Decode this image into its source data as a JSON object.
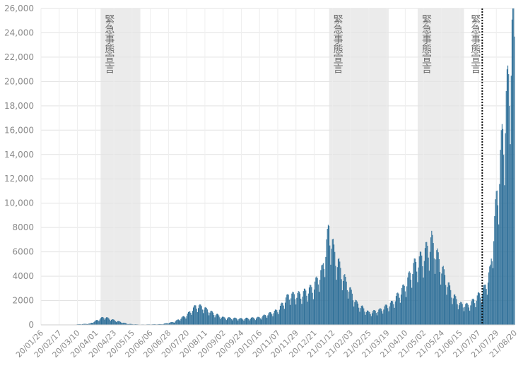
{
  "chart_data": {
    "type": "bar",
    "title": "",
    "xlabel": "",
    "ylabel": "",
    "ylim": [
      0,
      26000
    ],
    "grid": true,
    "bar_color": "#2e6f98",
    "band_color": "#ebebeb",
    "y_ticks": [
      {
        "value": 0,
        "label": "0"
      },
      {
        "value": 2000,
        "label": "2000"
      },
      {
        "value": 4000,
        "label": "4000"
      },
      {
        "value": 6000,
        "label": "6000"
      },
      {
        "value": 8000,
        "label": "8000"
      },
      {
        "value": 10000,
        "label": "10,000"
      },
      {
        "value": 12000,
        "label": "12,000"
      },
      {
        "value": 14000,
        "label": "14,000"
      },
      {
        "value": 16000,
        "label": "16,000"
      },
      {
        "value": 18000,
        "label": "18,000"
      },
      {
        "value": 20000,
        "label": "20,000"
      },
      {
        "value": 22000,
        "label": "22,000"
      },
      {
        "value": 24000,
        "label": "24,000"
      },
      {
        "value": 26000,
        "label": "26,000"
      }
    ],
    "x_ticks": [
      "20/01/26",
      "20/02/17",
      "20/03/10",
      "20/04/01",
      "20/04/23",
      "20/05/15",
      "20/06/06",
      "20/06/28",
      "20/07/20",
      "20/08/11",
      "20/09/02",
      "20/09/24",
      "20/10/16",
      "20/11/07",
      "20/11/29",
      "20/12/21",
      "21/01/12",
      "21/02/03",
      "21/02/25",
      "21/03/19",
      "21/04/10",
      "21/05/02",
      "21/05/24",
      "21/06/15",
      "21/07/07",
      "21/07/29",
      "21/08/20"
    ],
    "x_range": [
      "20/01/26",
      "21/08/20"
    ],
    "bands": [
      {
        "start": "20/04/07",
        "end": "20/05/25",
        "label": "緊急事態宣言"
      },
      {
        "start": "21/01/08",
        "end": "21/03/21",
        "label": "緊急事態宣言"
      },
      {
        "start": "21/04/25",
        "end": "21/06/20",
        "label": "緊急事態宣言"
      }
    ],
    "markers": [
      {
        "date": "21/07/12",
        "label": "緊急事態宣言",
        "style": "dotted"
      }
    ],
    "series": [
      {
        "anchors": [
          [
            "20/01/26",
            0
          ],
          [
            "20/03/01",
            10
          ],
          [
            "20/03/25",
            100
          ],
          [
            "20/04/11",
            650
          ],
          [
            "20/04/25",
            350
          ],
          [
            "20/05/10",
            80
          ],
          [
            "20/05/25",
            30
          ],
          [
            "20/06/20",
            60
          ],
          [
            "20/07/05",
            250
          ],
          [
            "20/07/20",
            800
          ],
          [
            "20/07/31",
            1550
          ],
          [
            "20/08/07",
            1500
          ],
          [
            "20/08/20",
            1000
          ],
          [
            "20/09/02",
            600
          ],
          [
            "20/09/24",
            500
          ],
          [
            "20/10/16",
            600
          ],
          [
            "20/11/07",
            1200
          ],
          [
            "20/11/20",
            2400
          ],
          [
            "20/12/05",
            2500
          ],
          [
            "20/12/20",
            3100
          ],
          [
            "20/12/31",
            4500
          ],
          [
            "21/01/08",
            7900
          ],
          [
            "21/01/14",
            6000
          ],
          [
            "21/01/25",
            4000
          ],
          [
            "21/02/10",
            1800
          ],
          [
            "21/02/25",
            1000
          ],
          [
            "21/03/10",
            1200
          ],
          [
            "21/03/25",
            1800
          ],
          [
            "21/04/10",
            3200
          ],
          [
            "21/04/20",
            4800
          ],
          [
            "21/05/01",
            5600
          ],
          [
            "21/05/12",
            6900
          ],
          [
            "21/05/25",
            4500
          ],
          [
            "21/06/05",
            2600
          ],
          [
            "21/06/15",
            1700
          ],
          [
            "21/06/25",
            1600
          ],
          [
            "21/07/05",
            2200
          ],
          [
            "21/07/15",
            3000
          ],
          [
            "21/07/22",
            4500
          ],
          [
            "21/07/29",
            10000
          ],
          [
            "21/08/05",
            15000
          ],
          [
            "21/08/13",
            20000
          ],
          [
            "21/08/19",
            25500
          ],
          [
            "21/08/20",
            23000
          ]
        ]
      }
    ]
  }
}
